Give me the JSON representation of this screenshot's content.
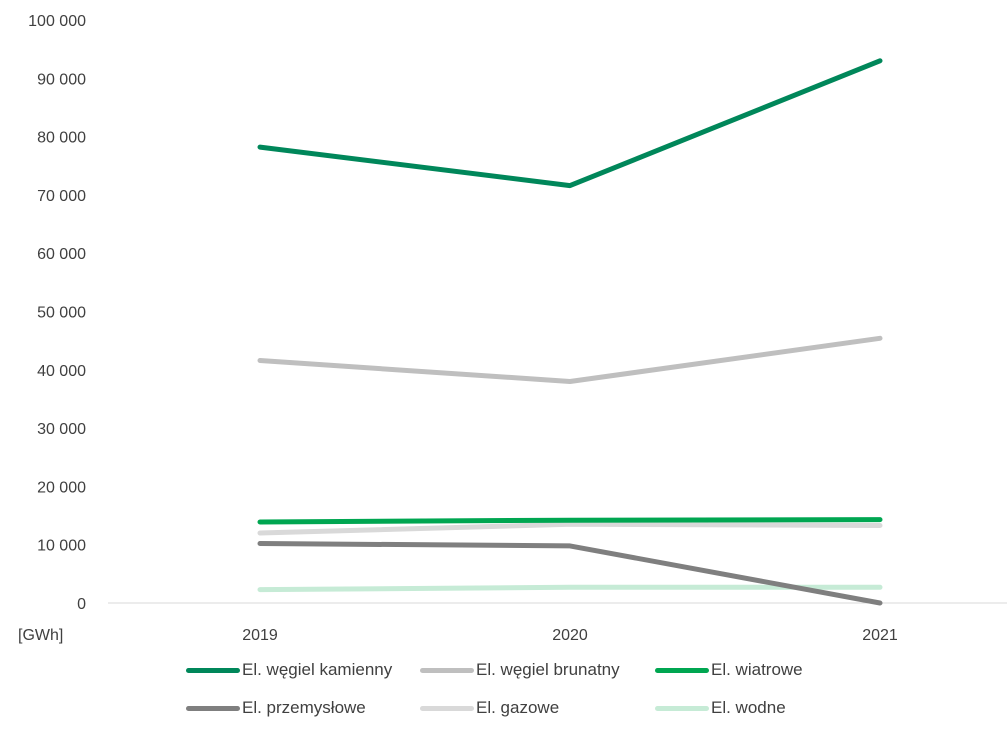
{
  "chart_data": {
    "type": "line",
    "title": "",
    "xlabel": "",
    "ylabel": "[GWh]",
    "categories": [
      "2019",
      "2020",
      "2021"
    ],
    "y_ticks": [
      "0",
      "10 000",
      "20 000",
      "30 000",
      "40 000",
      "50 000",
      "60 000",
      "70 000",
      "80 000",
      "90 000",
      "100 000"
    ],
    "ylim": [
      0,
      100000
    ],
    "grid": false,
    "legend_position": "bottom",
    "series": [
      {
        "name": "El. węgiel kamienny",
        "color": "#00875A",
        "values": [
          78200,
          71600,
          93000
        ]
      },
      {
        "name": "El. węgiel brunatny",
        "color": "#BFBFBF",
        "values": [
          41600,
          38000,
          45400
        ]
      },
      {
        "name": "El. wiatrowe",
        "color": "#00A651",
        "values": [
          13900,
          14200,
          14300
        ]
      },
      {
        "name": "El. przemysłowe",
        "color": "#7F7F7F",
        "values": [
          10200,
          9800,
          0
        ]
      },
      {
        "name": "El. gazowe",
        "color": "#D9D9D9",
        "values": [
          12000,
          13500,
          13300
        ]
      },
      {
        "name": "El. wodne",
        "color": "#C6EBD6",
        "values": [
          2300,
          2700,
          2700
        ]
      }
    ]
  }
}
